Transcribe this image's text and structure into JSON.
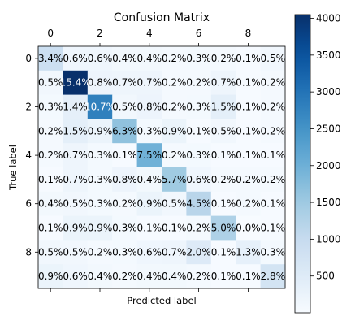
{
  "chart_data": {
    "type": "heatmap",
    "title": "Confusion Matrix",
    "xlabel": "Predicted label",
    "ylabel": "True label",
    "x_tick_labels": [
      "0",
      "2",
      "4",
      "6",
      "8"
    ],
    "x_tick_values": [
      0,
      2,
      4,
      6,
      8
    ],
    "x_tick_position": "top",
    "y_tick_labels": [
      "0",
      "2",
      "4",
      "6",
      "8"
    ],
    "y_tick_values": [
      0,
      2,
      4,
      6,
      8
    ],
    "colormap": "Blues",
    "colorbar": {
      "min": 0,
      "max": 4050,
      "tick_values": [
        500,
        1000,
        1500,
        2000,
        2500,
        3000,
        3500,
        4000
      ],
      "tick_labels": [
        "500",
        "1000",
        "1500",
        "2000",
        "2500",
        "3000",
        "3500",
        "4000"
      ]
    },
    "cell_labels": [
      [
        "3.4%",
        "0.6%",
        "0.6%",
        "0.4%",
        "0.4%",
        "0.2%",
        "0.3%",
        "0.2%",
        "0.1%",
        "0.5%"
      ],
      [
        "0.5%",
        "15.4%",
        "0.8%",
        "0.7%",
        "0.7%",
        "0.2%",
        "0.2%",
        "0.7%",
        "0.1%",
        "0.2%"
      ],
      [
        "0.3%",
        "1.4%",
        "10.7%",
        "0.5%",
        "0.8%",
        "0.2%",
        "0.3%",
        "1.5%",
        "0.1%",
        "0.2%"
      ],
      [
        "0.2%",
        "1.5%",
        "0.9%",
        "6.3%",
        "0.3%",
        "0.9%",
        "0.1%",
        "0.5%",
        "0.1%",
        "0.2%"
      ],
      [
        "0.2%",
        "0.7%",
        "0.3%",
        "0.1%",
        "7.5%",
        "0.2%",
        "0.3%",
        "0.1%",
        "0.1%",
        "0.1%"
      ],
      [
        "0.1%",
        "0.7%",
        "0.3%",
        "0.8%",
        "0.4%",
        "5.7%",
        "0.6%",
        "0.2%",
        "0.2%",
        "0.2%"
      ],
      [
        "0.4%",
        "0.5%",
        "0.3%",
        "0.2%",
        "0.9%",
        "0.5%",
        "4.5%",
        "0.1%",
        "0.2%",
        "0.1%"
      ],
      [
        "0.1%",
        "0.9%",
        "0.9%",
        "0.3%",
        "0.1%",
        "0.1%",
        "0.2%",
        "5.0%",
        "0.0%",
        "0.1%"
      ],
      [
        "0.5%",
        "0.5%",
        "0.2%",
        "0.3%",
        "0.6%",
        "0.7%",
        "2.0%",
        "0.1%",
        "1.3%",
        "0.3%"
      ],
      [
        "0.9%",
        "0.6%",
        "0.4%",
        "0.2%",
        "0.4%",
        "0.4%",
        "0.2%",
        "0.1%",
        "0.1%",
        "2.8%"
      ]
    ],
    "cell_counts": [
      [
        890,
        158,
        158,
        105,
        105,
        53,
        79,
        53,
        26,
        131
      ],
      [
        131,
        4050,
        210,
        184,
        184,
        53,
        53,
        184,
        26,
        53
      ],
      [
        79,
        368,
        2813,
        131,
        210,
        53,
        79,
        394,
        26,
        53
      ],
      [
        53,
        394,
        237,
        1656,
        79,
        237,
        26,
        131,
        26,
        53
      ],
      [
        53,
        184,
        79,
        26,
        1972,
        53,
        79,
        26,
        26,
        26
      ],
      [
        26,
        184,
        79,
        210,
        105,
        1498,
        158,
        53,
        53,
        53
      ],
      [
        105,
        131,
        79,
        53,
        237,
        131,
        1183,
        26,
        53,
        26
      ],
      [
        26,
        237,
        237,
        79,
        26,
        26,
        53,
        1314,
        0,
        26
      ],
      [
        131,
        131,
        53,
        79,
        158,
        184,
        526,
        26,
        342,
        79
      ],
      [
        237,
        158,
        105,
        53,
        105,
        105,
        53,
        26,
        26,
        736
      ]
    ]
  }
}
